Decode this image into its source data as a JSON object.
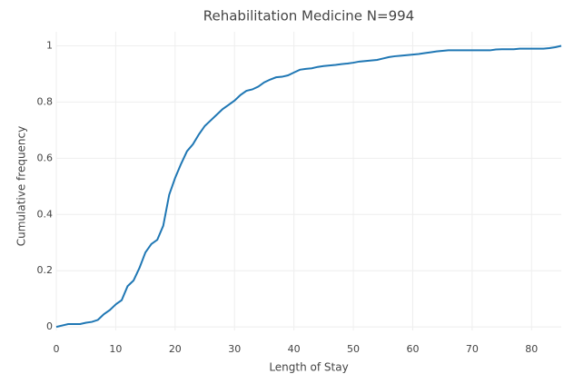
{
  "chart_data": {
    "type": "line",
    "title": "Rehabilitation Medicine N=994",
    "x_label": "Length of Stay",
    "y_label": "Cumulative frequency",
    "x": [
      0,
      1,
      2,
      3,
      4,
      5,
      6,
      7,
      8,
      9,
      10,
      11,
      12,
      13,
      14,
      15,
      16,
      17,
      18,
      19,
      20,
      21,
      22,
      23,
      24,
      25,
      26,
      27,
      28,
      29,
      30,
      31,
      32,
      33,
      34,
      35,
      36,
      37,
      38,
      39,
      40,
      41,
      42,
      43,
      44,
      45,
      46,
      47,
      48,
      49,
      50,
      51,
      52,
      53,
      54,
      55,
      56,
      57,
      58,
      59,
      60,
      61,
      62,
      63,
      64,
      65,
      66,
      67,
      68,
      69,
      70,
      71,
      72,
      73,
      74,
      75,
      76,
      77,
      78,
      79,
      80,
      81,
      82,
      83,
      84,
      85
    ],
    "series": [
      {
        "name": "Rehabilitation Medicine",
        "color": "#1f77b4",
        "values": [
          0.0,
          0.005,
          0.01,
          0.01,
          0.01,
          0.015,
          0.018,
          0.025,
          0.045,
          0.06,
          0.08,
          0.095,
          0.145,
          0.165,
          0.21,
          0.265,
          0.295,
          0.31,
          0.36,
          0.47,
          0.53,
          0.58,
          0.625,
          0.65,
          0.685,
          0.715,
          0.735,
          0.755,
          0.775,
          0.79,
          0.805,
          0.825,
          0.84,
          0.845,
          0.855,
          0.87,
          0.88,
          0.888,
          0.89,
          0.895,
          0.905,
          0.915,
          0.918,
          0.92,
          0.925,
          0.928,
          0.93,
          0.932,
          0.935,
          0.937,
          0.94,
          0.944,
          0.946,
          0.948,
          0.95,
          0.955,
          0.96,
          0.963,
          0.965,
          0.967,
          0.969,
          0.971,
          0.974,
          0.977,
          0.98,
          0.982,
          0.984,
          0.984,
          0.984,
          0.984,
          0.984,
          0.984,
          0.984,
          0.984,
          0.987,
          0.988,
          0.988,
          0.988,
          0.99,
          0.99,
          0.99,
          0.99,
          0.99,
          0.992,
          0.995,
          1.0
        ]
      }
    ],
    "xlim": [
      0,
      85
    ],
    "xticks": [
      0,
      10,
      20,
      30,
      40,
      50,
      60,
      70,
      80
    ],
    "ylim": [
      -0.0125,
      1.05
    ],
    "yticks": [
      0,
      0.2,
      0.4,
      0.6,
      0.8,
      1
    ],
    "grid": true
  }
}
